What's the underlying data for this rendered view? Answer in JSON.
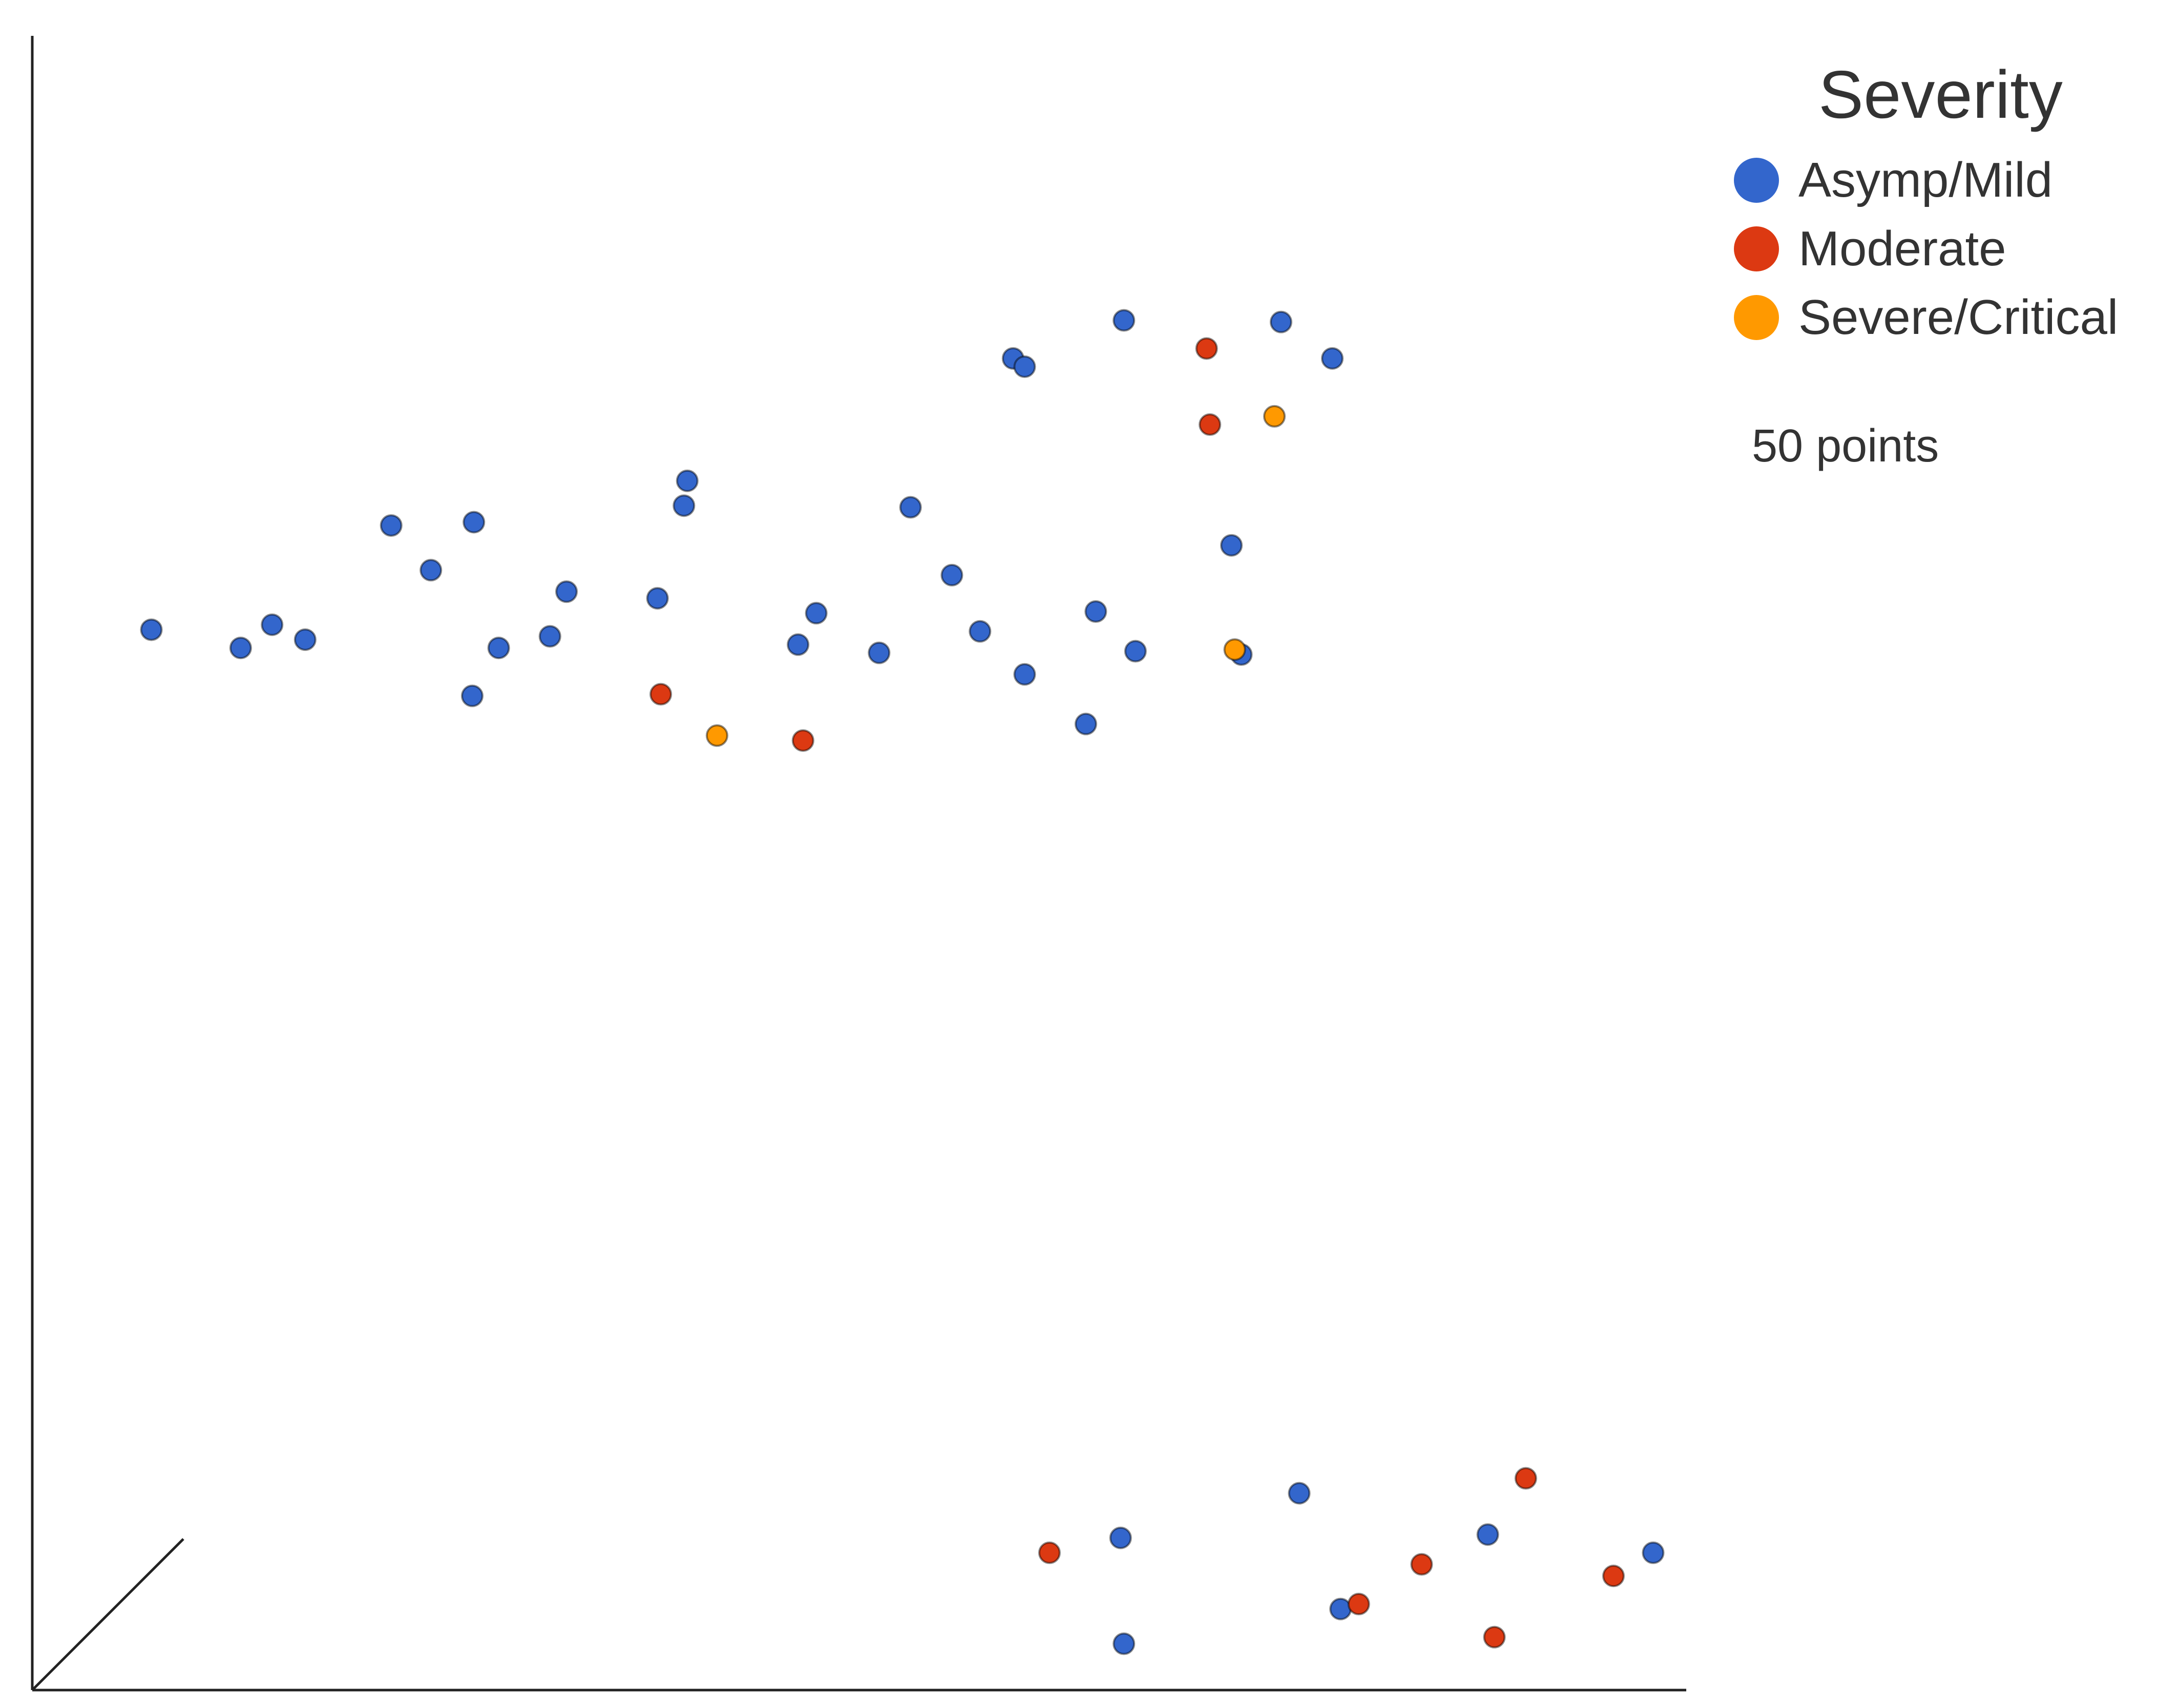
{
  "chart_data": {
    "type": "scatter",
    "title": "",
    "xlabel": "",
    "ylabel": "",
    "xlim": [
      0,
      100
    ],
    "ylim": [
      0,
      100
    ],
    "grid": false,
    "legend_position": "top-right",
    "legend_title": "Severity",
    "point_count_label": "50 points",
    "series": [
      {
        "name": "Asymp/Mild",
        "color": "#3366cc",
        "points": [
          [
            7.2,
            64.1
          ],
          [
            12.6,
            63.0
          ],
          [
            14.5,
            64.4
          ],
          [
            16.5,
            63.5
          ],
          [
            21.7,
            70.4
          ],
          [
            24.1,
            67.7
          ],
          [
            26.6,
            60.1
          ],
          [
            26.7,
            70.6
          ],
          [
            28.2,
            63.0
          ],
          [
            31.3,
            63.7
          ],
          [
            32.3,
            66.4
          ],
          [
            37.8,
            66.0
          ],
          [
            39.4,
            71.6
          ],
          [
            39.6,
            73.1
          ],
          [
            46.3,
            63.2
          ],
          [
            47.4,
            65.1
          ],
          [
            51.2,
            62.7
          ],
          [
            53.1,
            71.5
          ],
          [
            55.6,
            67.4
          ],
          [
            57.3,
            64.0
          ],
          [
            59.3,
            80.5
          ],
          [
            60.0,
            80.0
          ],
          [
            60.0,
            61.4
          ],
          [
            63.7,
            58.4
          ],
          [
            64.3,
            65.2
          ],
          [
            66.0,
            82.8
          ],
          [
            66.7,
            62.8
          ],
          [
            72.5,
            69.2
          ],
          [
            73.1,
            62.6
          ],
          [
            75.5,
            82.7
          ],
          [
            78.6,
            80.5
          ],
          [
            65.8,
            9.2
          ],
          [
            66.0,
            2.8
          ],
          [
            76.6,
            11.9
          ],
          [
            79.1,
            4.9
          ],
          [
            88.0,
            9.4
          ],
          [
            98.0,
            8.3
          ]
        ]
      },
      {
        "name": "Moderate",
        "color": "#dc3912",
        "points": [
          [
            38.0,
            60.2
          ],
          [
            46.6,
            57.4
          ],
          [
            71.0,
            81.1
          ],
          [
            71.2,
            76.5
          ],
          [
            61.5,
            8.3
          ],
          [
            80.2,
            5.2
          ],
          [
            84.0,
            7.6
          ],
          [
            88.4,
            3.2
          ],
          [
            90.3,
            12.8
          ],
          [
            95.6,
            6.9
          ]
        ]
      },
      {
        "name": "Severe/Critical",
        "color": "#ff9900",
        "points": [
          [
            41.4,
            57.7
          ],
          [
            72.7,
            62.9
          ],
          [
            75.1,
            77.0
          ]
        ]
      }
    ]
  }
}
